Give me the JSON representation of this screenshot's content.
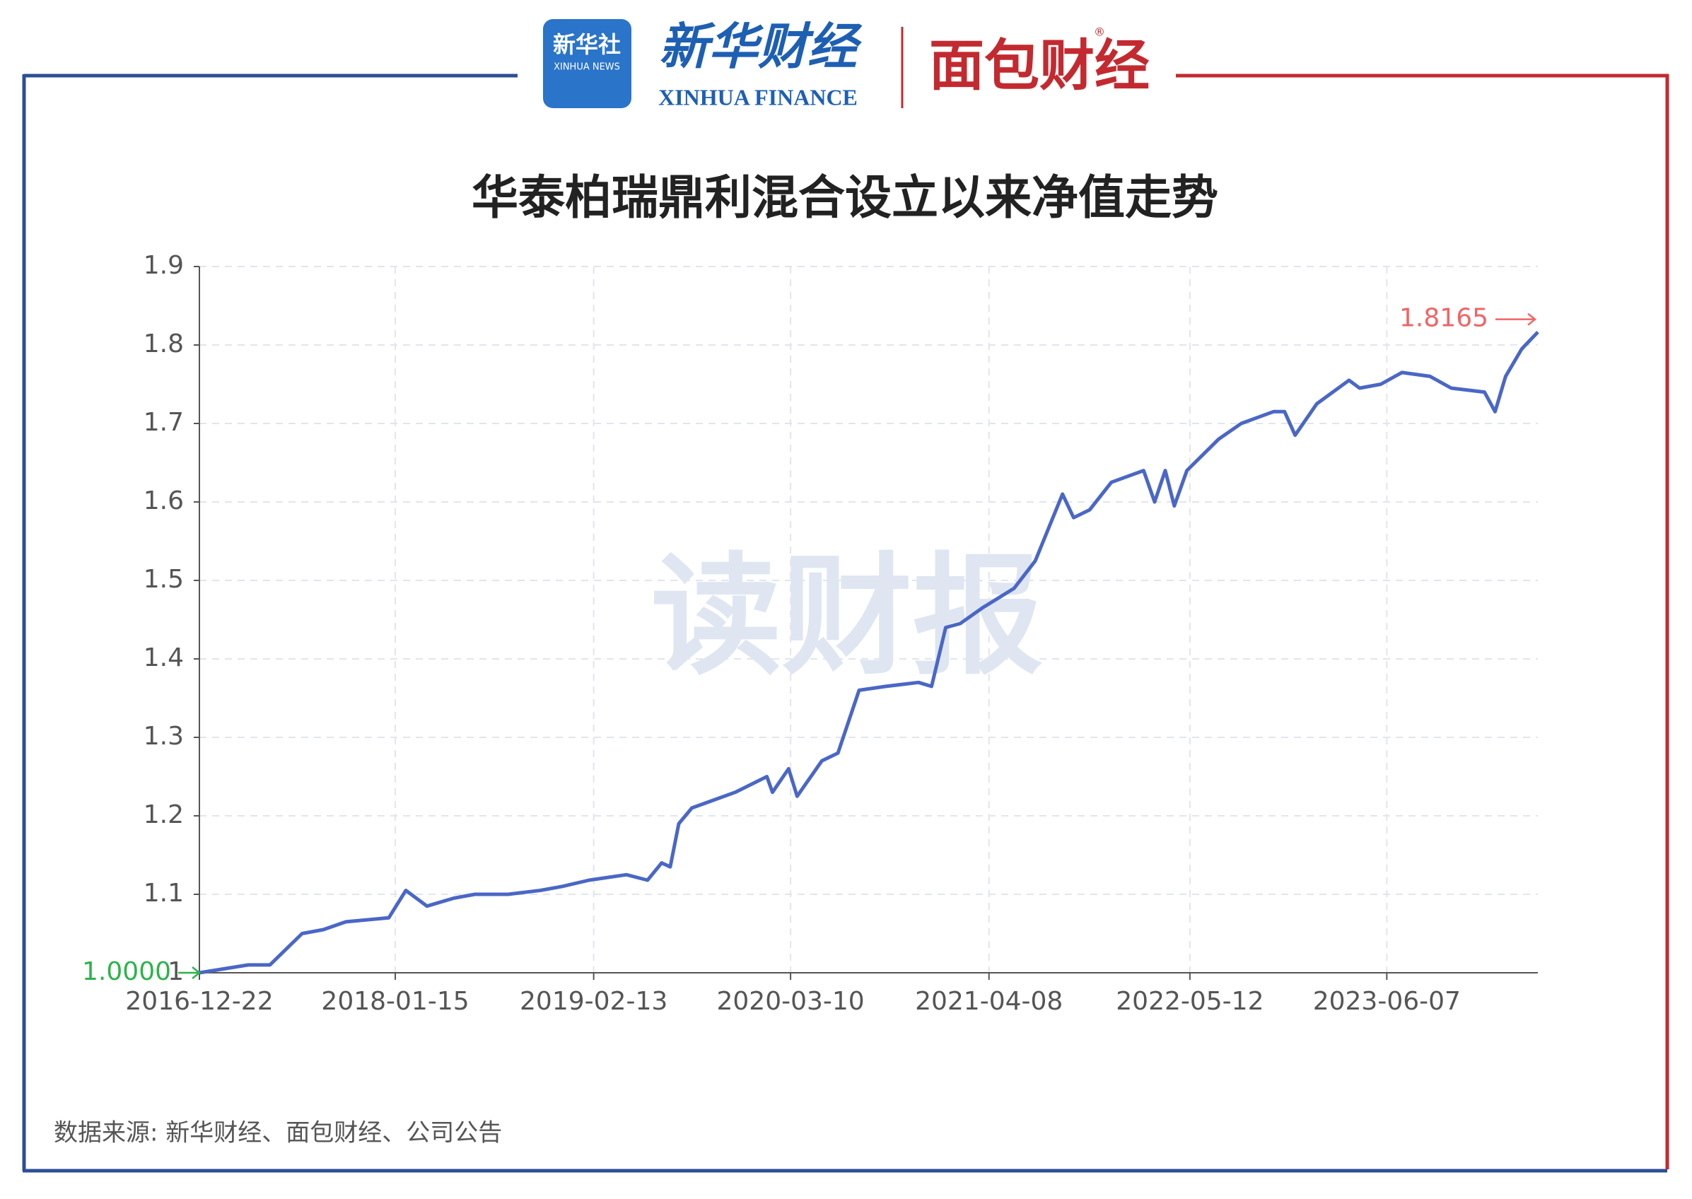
{
  "header": {
    "xinhua_logo": "新华社",
    "xinhua_logo_en": "XINHUA NEWS",
    "finance": "新华财经",
    "finance_en": "XINHUA FINANCE",
    "bread": "面包财经",
    "registered": "®"
  },
  "watermark": "读财报",
  "chart_data": {
    "type": "line",
    "title": "华泰柏瑞鼎利混合设立以来净值走势",
    "x": [
      "2016-12-22",
      "2017-03-29",
      "2017-05-11",
      "2017-07-14",
      "2017-08-25",
      "2017-10-09",
      "2018-01-02",
      "2018-02-05",
      "2018-03-19",
      "2018-05-11",
      "2018-06-22",
      "2018-08-27",
      "2018-10-30",
      "2018-12-12",
      "2019-02-04",
      "2019-04-19",
      "2019-05-31",
      "2019-06-28",
      "2019-07-15",
      "2019-08-01",
      "2019-08-27",
      "2019-11-21",
      "2020-01-23",
      "2020-02-03",
      "2020-03-06",
      "2020-03-23",
      "2020-05-11",
      "2020-06-12",
      "2020-07-24",
      "2020-09-15",
      "2020-11-19",
      "2020-12-15",
      "2021-01-12",
      "2021-02-10",
      "2021-03-26",
      "2021-05-28",
      "2021-07-09",
      "2021-09-01",
      "2021-09-23",
      "2021-10-25",
      "2021-12-07",
      "2022-02-09",
      "2022-03-03",
      "2022-03-24",
      "2022-04-11",
      "2022-05-06",
      "2022-07-08",
      "2022-08-22",
      "2022-10-25",
      "2022-11-16",
      "2022-12-07",
      "2023-01-19",
      "2023-03-24",
      "2023-04-14",
      "2023-05-26",
      "2023-07-07",
      "2023-09-01",
      "2023-10-13",
      "2023-12-18",
      "2024-01-08",
      "2024-01-29",
      "2024-03-01",
      "2024-04-02"
    ],
    "series": [
      {
        "name": "净值",
        "color": "#4a67c6",
        "values": [
          1.0,
          1.01,
          1.01,
          1.05,
          1.055,
          1.065,
          1.07,
          1.105,
          1.085,
          1.095,
          1.1,
          1.1,
          1.105,
          1.11,
          1.118,
          1.125,
          1.118,
          1.14,
          1.135,
          1.19,
          1.21,
          1.23,
          1.25,
          1.23,
          1.26,
          1.225,
          1.27,
          1.28,
          1.36,
          1.365,
          1.37,
          1.365,
          1.44,
          1.445,
          1.465,
          1.49,
          1.525,
          1.61,
          1.58,
          1.59,
          1.625,
          1.64,
          1.6,
          1.64,
          1.595,
          1.64,
          1.68,
          1.7,
          1.715,
          1.715,
          1.685,
          1.725,
          1.755,
          1.745,
          1.75,
          1.765,
          1.76,
          1.745,
          1.74,
          1.715,
          1.76,
          1.795,
          1.8165
        ]
      }
    ],
    "xlim": [
      "2016-12-22",
      "2024-04-02"
    ],
    "xticks": [
      "2016-12-22",
      "2018-01-15",
      "2019-02-13",
      "2020-03-10",
      "2021-04-08",
      "2022-05-12",
      "2023-06-07"
    ],
    "ylim": [
      1,
      1.9
    ],
    "yticks": [
      1,
      1.1,
      1.2,
      1.3,
      1.4,
      1.5,
      1.6,
      1.7,
      1.8,
      1.9
    ],
    "grid": true,
    "annotations": [
      {
        "value": 1,
        "label": "1.0000",
        "color": "#2db34a"
      },
      {
        "value": 1.8165,
        "label": "1.8165",
        "color": "#f06466"
      }
    ],
    "source": "数据来源: 新华财经、面包财经、公司公告"
  }
}
